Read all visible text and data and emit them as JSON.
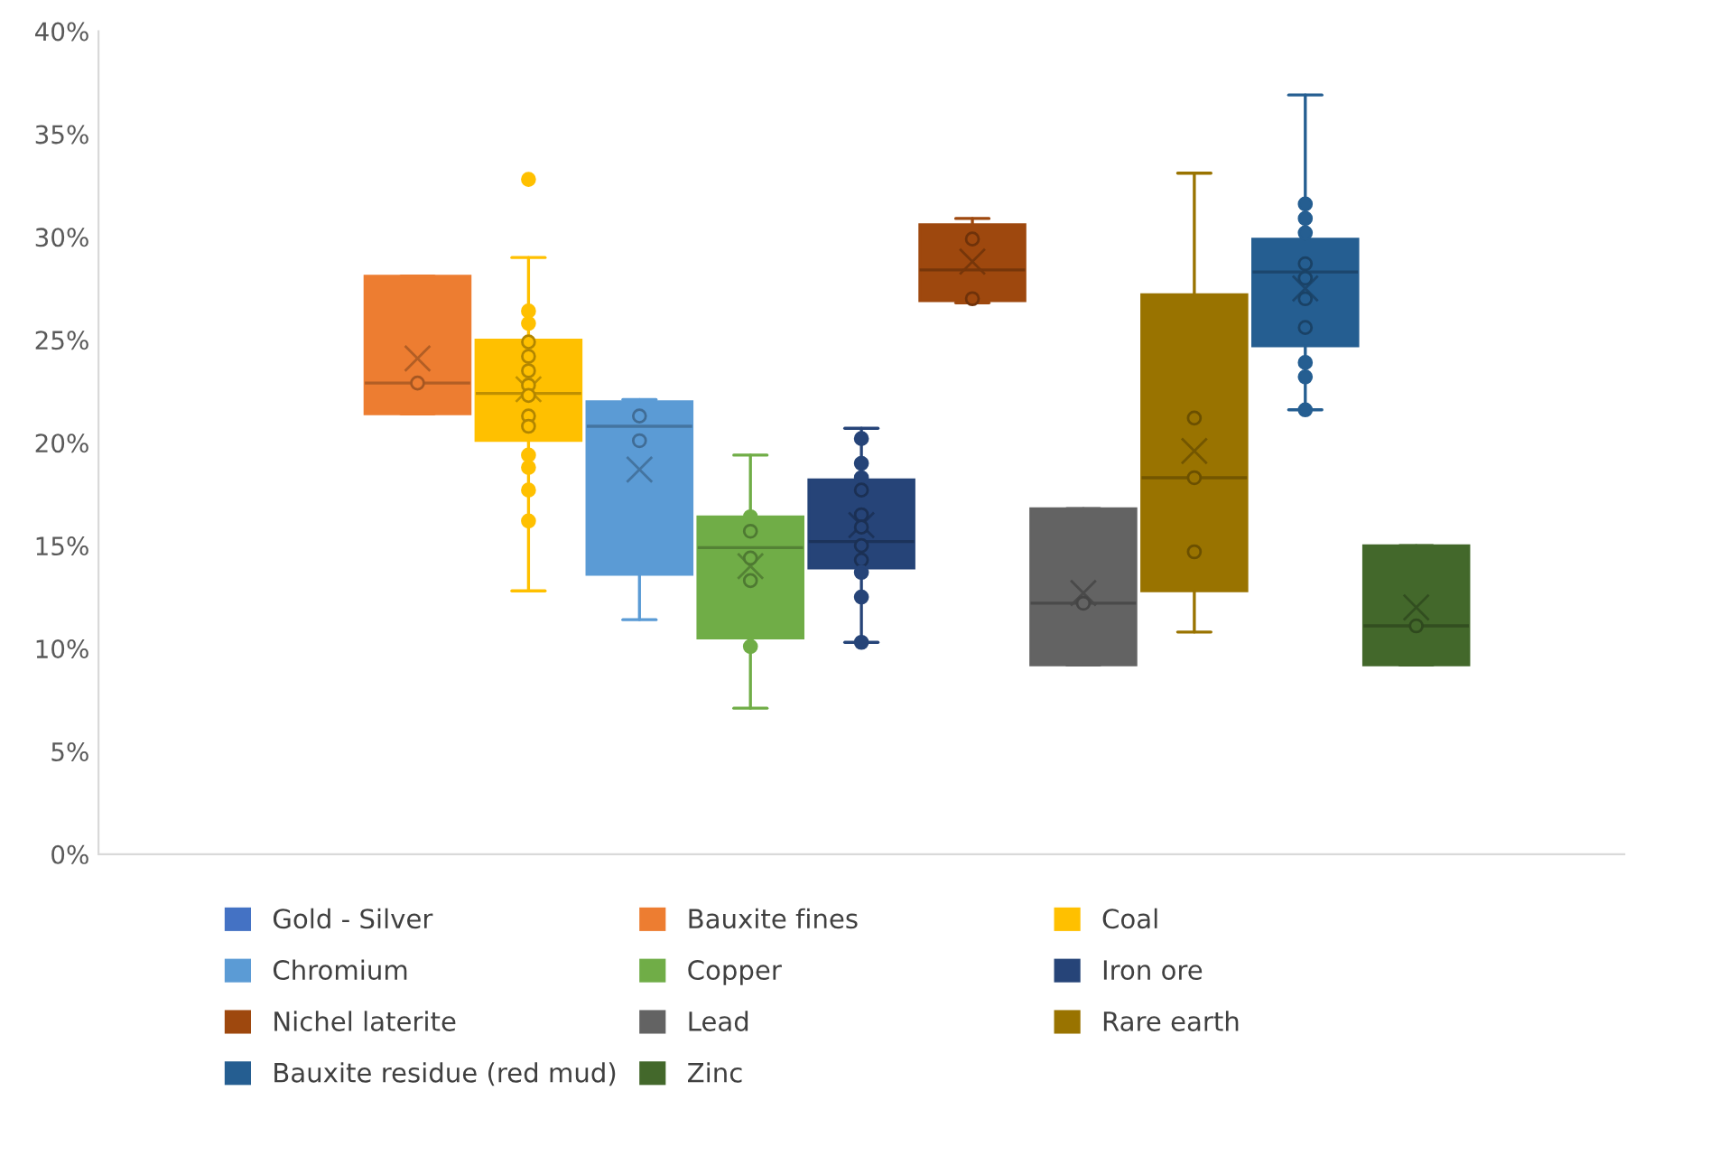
{
  "chart_data": {
    "type": "box",
    "categories": [
      null
    ],
    "ylim": [
      0,
      40
    ],
    "yticks": [
      {
        "value": 0,
        "label": "0%"
      },
      {
        "value": 5,
        "label": "5%"
      },
      {
        "value": 10,
        "label": "10%"
      },
      {
        "value": 15,
        "label": "15%"
      },
      {
        "value": 20,
        "label": "20%"
      },
      {
        "value": 25,
        "label": "25%"
      },
      {
        "value": 30,
        "label": "30%"
      },
      {
        "value": 35,
        "label": "35%"
      },
      {
        "value": 40,
        "label": "40%"
      }
    ],
    "grid": false,
    "legend": "bottom",
    "tick_labels": "y",
    "series": [
      {
        "name": "Gold - Silver",
        "color": "#4472c4",
        "boxes": [
          null
        ]
      },
      {
        "name": "Bauxite fines",
        "color": "#ed7d31",
        "boxes": [
          {
            "low": 21.4,
            "q1": 21.4,
            "median": 22.9,
            "q3": 28.1,
            "high": 28.1,
            "mean": 24.1,
            "outliers": [
              22.9
            ]
          }
        ]
      },
      {
        "name": "Coal",
        "color": "#ffc000",
        "boxes": [
          {
            "low": 12.8,
            "q1": 20.1,
            "median": 22.4,
            "q3": 25.0,
            "high": 29.0,
            "mean": 22.6,
            "outliers": [
              32.8,
              26.4,
              25.8,
              24.9,
              24.2,
              23.5,
              22.8,
              22.3,
              21.3,
              20.8,
              19.4,
              18.8,
              17.7,
              16.2
            ]
          }
        ]
      },
      {
        "name": "Chromium",
        "color": "#5b9bd5",
        "boxes": [
          {
            "low": 11.4,
            "q1": 13.6,
            "median": 20.8,
            "q3": 22.0,
            "high": 22.1,
            "mean": 18.7,
            "outliers": [
              21.3,
              20.1
            ]
          }
        ]
      },
      {
        "name": "Copper",
        "color": "#70ad47",
        "boxes": [
          {
            "low": 7.1,
            "q1": 10.5,
            "median": 14.9,
            "q3": 16.4,
            "high": 19.4,
            "mean": 14.0,
            "outliers": [
              16.4,
              15.7,
              14.4,
              13.3,
              10.1
            ]
          }
        ]
      },
      {
        "name": "Iron ore",
        "color": "#264478",
        "boxes": [
          {
            "low": 10.3,
            "q1": 13.9,
            "median": 15.2,
            "q3": 18.2,
            "high": 20.7,
            "mean": 16.0,
            "outliers": [
              20.2,
              19.0,
              18.3,
              17.7,
              16.5,
              15.9,
              15.0,
              14.3,
              13.7,
              12.5,
              10.3
            ]
          }
        ]
      },
      {
        "name": "Nichel laterite",
        "color": "#9e480e",
        "boxes": [
          {
            "low": 26.8,
            "q1": 26.9,
            "median": 28.4,
            "q3": 30.6,
            "high": 30.9,
            "mean": 28.8,
            "outliers": [
              29.9,
              27.0
            ]
          }
        ]
      },
      {
        "name": "Lead",
        "color": "#636363",
        "boxes": [
          {
            "low": 9.2,
            "q1": 9.2,
            "median": 12.2,
            "q3": 16.8,
            "high": 16.8,
            "mean": 12.7,
            "outliers": [
              12.2
            ]
          }
        ]
      },
      {
        "name": "Rare earth",
        "color": "#997300",
        "boxes": [
          {
            "low": 10.8,
            "q1": 12.8,
            "median": 18.3,
            "q3": 27.2,
            "high": 33.1,
            "mean": 19.6,
            "outliers": [
              21.2,
              18.3,
              14.7
            ]
          }
        ]
      },
      {
        "name": "Bauxite residue (red mud)",
        "color": "#255e91",
        "boxes": [
          {
            "low": 21.6,
            "q1": 24.7,
            "median": 28.3,
            "q3": 29.9,
            "high": 36.9,
            "mean": 27.5,
            "outliers": [
              31.6,
              30.9,
              30.2,
              28.7,
              28.0,
              27.0,
              25.6,
              23.9,
              23.2,
              21.6
            ]
          }
        ]
      },
      {
        "name": "Zinc",
        "color": "#43682b",
        "boxes": [
          {
            "low": 9.2,
            "q1": 9.2,
            "median": 11.1,
            "q3": 15.0,
            "high": 15.0,
            "mean": 12.0,
            "outliers": [
              11.1
            ]
          }
        ]
      }
    ]
  }
}
